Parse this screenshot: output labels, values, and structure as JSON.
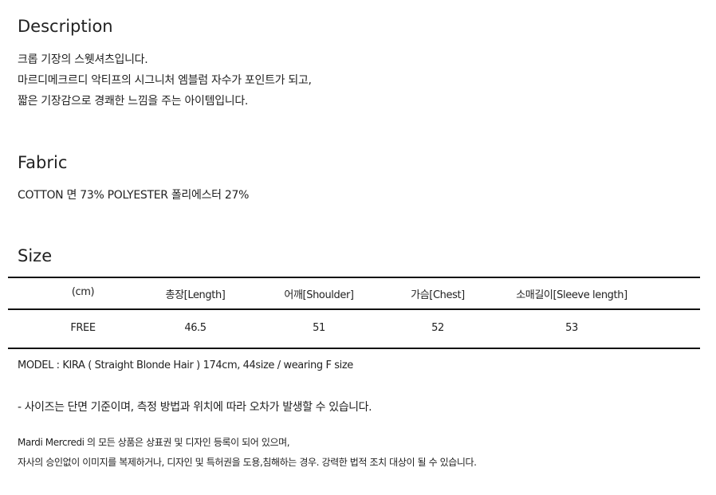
{
  "description": {
    "title": "Description",
    "lines": [
      "크롭 기장의 스웻셔츠입니다.",
      "마르디메크르디 악티프의 시그니처 엠블럼 자수가 포인트가 되고,",
      "짧은 기장감으로 경쾌한 느낌을 주는 아이템입니다."
    ]
  },
  "fabric": {
    "title": "Fabric",
    "text": "COTTON 면 73% POLYESTER 폴리에스터 27%"
  },
  "size": {
    "title": "Size",
    "headers": [
      "(cm)",
      "총장[Length]",
      "어깨[Shoulder]",
      "가슴[Chest]",
      "소매길이[Sleeve length]"
    ],
    "rows": [
      [
        "FREE",
        "46.5",
        "51",
        "52",
        "53"
      ]
    ],
    "model": "MODEL : KIRA ( Straight Blonde Hair ) 174cm, 44size / wearing F size",
    "note": "- 사이즈는 단면 기준이며, 측정 방법과 위치에 따라 오차가 발생할 수 있습니다."
  },
  "legal": [
    "Mardi Mercredi 의 모든 상품은 상표권 및 디자인 등록이 되어 있으며,",
    "자사의 승인없이 이미지를 복제하거나, 디자인 및 특허권을 도용,침해하는 경우. 강력한 법적 조치 대상이 될 수 있습니다."
  ]
}
